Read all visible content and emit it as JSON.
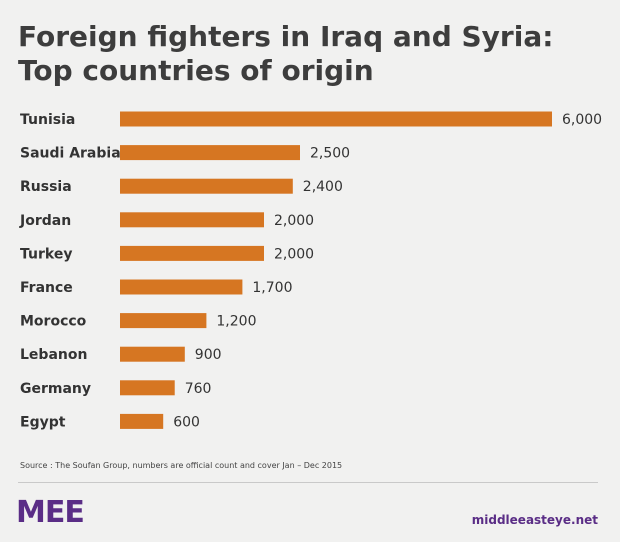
{
  "header": {
    "title_line1": "Foreign fighters in Iraq and Syria:",
    "title_line2": "Top countries of origin"
  },
  "chart_data": {
    "type": "bar",
    "orientation": "horizontal",
    "title": "Foreign fighters in Iraq and Syria: Top countries of origin",
    "categories": [
      "Tunisia",
      "Saudi Arabia",
      "Russia",
      "Jordan",
      "Turkey",
      "France",
      "Morocco",
      "Lebanon",
      "Germany",
      "Egypt"
    ],
    "values": [
      6000,
      2500,
      2400,
      2000,
      2000,
      1700,
      1200,
      900,
      760,
      600
    ],
    "value_labels": [
      "6,000",
      "2,500",
      "2,400",
      "2,000",
      "2,000",
      "1,700",
      "1,200",
      "900",
      "760",
      "600"
    ],
    "xlim": [
      0,
      6000
    ],
    "grid": false,
    "bar_color": "#d67622"
  },
  "footer": {
    "source": "Source : The Soufan Group, numbers are official count and cover Jan – Dec 2015",
    "logo_text": "MEE",
    "site": "middleeasteye.net",
    "brand_color": "#5a2d86"
  }
}
